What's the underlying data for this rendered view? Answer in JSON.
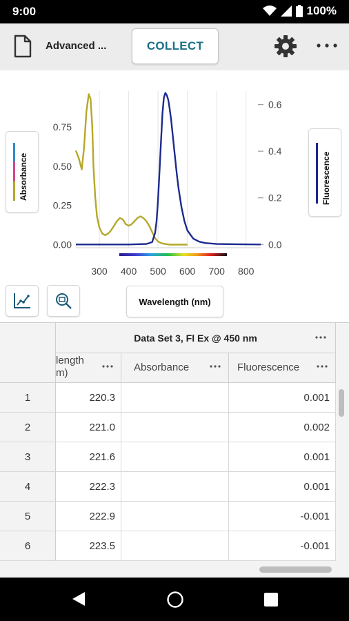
{
  "status_bar": {
    "time": "9:00",
    "battery": "100%",
    "icons": [
      "wifi-icon",
      "signal-icon",
      "battery-icon"
    ]
  },
  "toolbar": {
    "file_title": "Advanced ...",
    "collect_label": "COLLECT",
    "icons": [
      "document-icon",
      "gear-icon",
      "more-options-icon"
    ]
  },
  "graph": {
    "legend_left_label": "Absorbance",
    "legend_right_label": "Fluorescence",
    "x_axis_button_label": "Wavelength (nm)",
    "tool_icons": [
      "graph-options-icon",
      "zoom-icon"
    ],
    "colors": {
      "absorbance": "#b5a82a",
      "fluorescence": "#1c2a8e",
      "legend_absorbance_swatch": [
        "#2f8ac9",
        "#d2468c",
        "#b5a82a"
      ]
    }
  },
  "chart_data": {
    "type": "line",
    "xlabel": "Wavelength (nm)",
    "xlim": [
      220,
      850
    ],
    "x_ticks": [
      "300",
      "400",
      "500",
      "600",
      "700",
      "800"
    ],
    "y_left_ticks": [
      "0.00",
      "0.25",
      "0.50",
      "0.75"
    ],
    "y_right_ticks": [
      "0.0",
      "0.2",
      "0.4",
      "0.6"
    ],
    "ylim_left": [
      -0.02,
      0.98
    ],
    "ylim_right": [
      -0.014,
      0.658
    ],
    "grid": "vertical",
    "series": [
      {
        "name": "Absorbance",
        "axis": "left",
        "color": "#b5a82a",
        "x": [
          220,
          230,
          240,
          248,
          256,
          264,
          270,
          276,
          280,
          286,
          292,
          300,
          310,
          320,
          330,
          340,
          350,
          360,
          370,
          380,
          390,
          400,
          410,
          420,
          430,
          440,
          450,
          460,
          470,
          480,
          490,
          500,
          510,
          520,
          540,
          560,
          600
        ],
        "y": [
          0.6,
          0.55,
          0.48,
          0.62,
          0.85,
          0.96,
          0.93,
          0.75,
          0.5,
          0.3,
          0.18,
          0.11,
          0.07,
          0.06,
          0.07,
          0.09,
          0.12,
          0.15,
          0.17,
          0.16,
          0.13,
          0.12,
          0.13,
          0.15,
          0.17,
          0.18,
          0.17,
          0.15,
          0.12,
          0.08,
          0.04,
          0.02,
          0.01,
          0.005,
          0.0,
          0.0,
          0.0
        ]
      },
      {
        "name": "Fluorescence",
        "axis": "right",
        "color": "#1c2a8e",
        "x": [
          220,
          300,
          400,
          460,
          480,
          490,
          495,
          500,
          505,
          510,
          515,
          520,
          525,
          530,
          535,
          540,
          545,
          550,
          555,
          560,
          565,
          570,
          580,
          590,
          600,
          620,
          640,
          660,
          700,
          760,
          850
        ],
        "y": [
          0.0,
          0.0,
          0.0,
          0.002,
          0.01,
          0.05,
          0.1,
          0.19,
          0.31,
          0.44,
          0.56,
          0.63,
          0.65,
          0.64,
          0.62,
          0.58,
          0.53,
          0.47,
          0.41,
          0.35,
          0.29,
          0.24,
          0.16,
          0.1,
          0.06,
          0.025,
          0.012,
          0.006,
          0.002,
          0.001,
          0.0
        ]
      }
    ]
  },
  "table": {
    "dataset_title": "Data Set 3, Fl Ex @ 450 nm",
    "columns": [
      {
        "label_line1": "length",
        "label_line2": "m)"
      },
      {
        "label": "Absorbance"
      },
      {
        "label": "Fluorescence"
      }
    ],
    "rows": [
      {
        "num": "1",
        "wavelength": "220.3",
        "absorbance": "",
        "fluorescence": "0.001"
      },
      {
        "num": "2",
        "wavelength": "221.0",
        "absorbance": "",
        "fluorescence": "0.002"
      },
      {
        "num": "3",
        "wavelength": "221.6",
        "absorbance": "",
        "fluorescence": "0.001"
      },
      {
        "num": "4",
        "wavelength": "222.3",
        "absorbance": "",
        "fluorescence": "0.001"
      },
      {
        "num": "5",
        "wavelength": "222.9",
        "absorbance": "",
        "fluorescence": "-0.001"
      },
      {
        "num": "6",
        "wavelength": "223.5",
        "absorbance": "",
        "fluorescence": "-0.001"
      }
    ]
  },
  "nav_bar": {
    "icons": [
      "back-icon",
      "home-icon",
      "recent-apps-icon"
    ]
  }
}
